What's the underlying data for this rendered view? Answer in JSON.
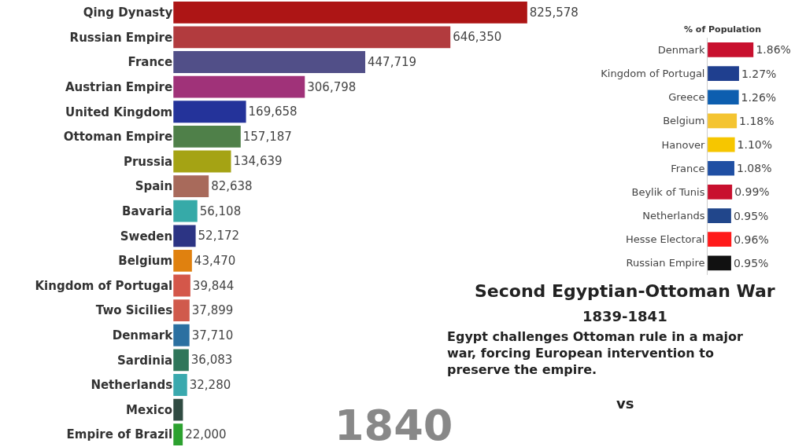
{
  "chart_data": [
    {
      "type": "bar",
      "orientation": "horizontal",
      "categories": [
        "Qing Dynasty",
        "Russian Empire",
        "France",
        "Austrian Empire",
        "United Kingdom",
        "Ottoman Empire",
        "Prussia",
        "Spain",
        "Bavaria",
        "Sweden",
        "Belgium",
        "Kingdom of Portugal",
        "Two Sicilies",
        "Denmark",
        "Sardinia",
        "Netherlands",
        "Mexico",
        "Empire of Brazil"
      ],
      "values": [
        825578,
        646350,
        447719,
        306798,
        169658,
        157187,
        134639,
        82638,
        56108,
        52172,
        43470,
        39844,
        37899,
        37710,
        36083,
        32280,
        22500,
        22000
      ],
      "colors": [
        "#ad1515",
        "#b23b3e",
        "#514f88",
        "#a03279",
        "#24339a",
        "#4f8049",
        "#a5a314",
        "#a86a5b",
        "#36aaa8",
        "#2c3484",
        "#e0810f",
        "#d4574a",
        "#d05a4c",
        "#2b70a1",
        "#2f765a",
        "#3aa9ae",
        "#304b42",
        "#2ca12f"
      ],
      "value_labels": [
        "825,578",
        "646,350",
        "447,719",
        "306,798",
        "169,658",
        "157,187",
        "134,639",
        "82,638",
        "56,108",
        "52,172",
        "43,470",
        "39,844",
        "37,899",
        "37,710",
        "36,083",
        "32,280",
        null,
        "22,000"
      ],
      "annotations": [
        "1840"
      ],
      "tick_labels": "y"
    },
    {
      "type": "bar",
      "orientation": "horizontal",
      "title": "% of Population",
      "categories": [
        "Denmark",
        "Kingdom of Portugal",
        "Greece",
        "Belgium",
        "Hanover",
        "France",
        "Beylik of Tunis",
        "Netherlands",
        "Hesse Electoral",
        "Russian Empire"
      ],
      "values": [
        1.86,
        1.27,
        1.26,
        1.18,
        1.1,
        1.08,
        0.99,
        0.95,
        0.96,
        0.95
      ],
      "colors": [
        "#c8102e",
        "#1f3f8f",
        "#0d5eaf",
        "#f4c431",
        "#f6c600",
        "#1f4fa3",
        "#c8102e",
        "#21468b",
        "#ff1a1a",
        "#111111"
      ],
      "value_labels": [
        "1.86%",
        "1.27%",
        "1.26%",
        "1.18%",
        "1.10%",
        "1.08%",
        "0.99%",
        "0.95%",
        "0.96%",
        "0.95%"
      ],
      "tick_labels": "y"
    },
    {
      "type": "other",
      "title": "Second Egyptian-Ottoman War",
      "subtitle": "1839-1841",
      "annotations": [
        "Egypt challenges Ottoman rule in a major war, forcing European intervention to preserve the empire.",
        "vs"
      ]
    }
  ]
}
